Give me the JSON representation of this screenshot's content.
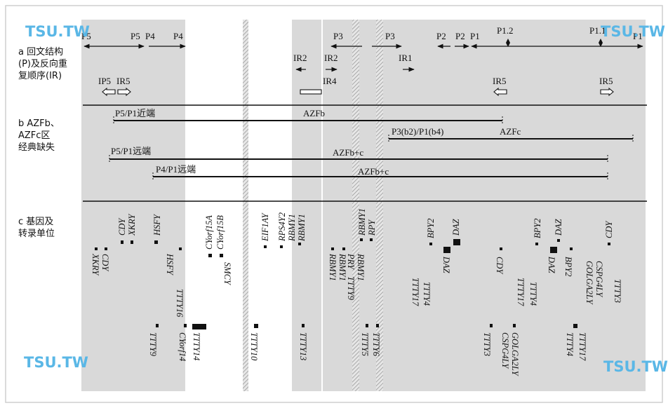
{
  "sections": {
    "a": [
      "a 回文结构",
      "(P)及反向重",
      "复顺序(IR)"
    ],
    "b": [
      "b AZFb、",
      "AZFc区",
      "经典缺失"
    ],
    "c": [
      "c 基因及",
      "转录单位"
    ]
  },
  "palindromes": [
    "P5",
    "P5",
    "P4",
    "P4",
    "P3",
    "P3",
    "P2",
    "P2",
    "P1",
    "P1.2",
    "P1.1",
    "P1"
  ],
  "inverted_repeats": [
    "IR2",
    "IR2",
    "IR1",
    "IP5",
    "IR5",
    "IR4",
    "IR5",
    "IR5"
  ],
  "deletions": [
    {
      "label": "P5/P1近端",
      "region": "AZFb"
    },
    {
      "label": "P3(b2)/P1(b4)",
      "region": "AZFc"
    },
    {
      "label": "P5/P1远端",
      "region": "AZFb+c"
    },
    {
      "label": "P4/P1远端",
      "region": "AZFb+c"
    }
  ],
  "genes_upper": [
    "CDY",
    "XKRY",
    "HSFY",
    "CYorf15A",
    "CYorf15B",
    "EIF1AY",
    "RPS4Y2",
    "RBMY1",
    "RBMY1",
    "RBMY1",
    "RPY",
    "BPY2",
    "DAZ",
    "BPY2",
    "DAZ",
    "CDY"
  ],
  "genes_lower": [
    "XKRY",
    "CDY",
    "HSFY",
    "TTTY16",
    "SMCY",
    "RBMY1",
    "RBMY1",
    "PRY",
    "TTTY9",
    "RBMY1",
    "TTTY17",
    "TTTY4",
    "DAZ",
    "CDY",
    "TTTY17",
    "TTTY4",
    "DAZ",
    "BPY2",
    "GOLGA2LY",
    "CSPG4LY",
    "TTTY3"
  ],
  "genes_bottom": [
    "TTTY9",
    "CYorf14",
    "TTTY14",
    "TTTY10",
    "TTTY13",
    "TTTY5",
    "TTTY6",
    "TTTY3",
    "GOLGA2LY",
    "CSPG4LY",
    "TTTY17",
    "TTTY4"
  ],
  "watermark": "TSU.TW",
  "colors": {
    "shade": "#d9d9d9",
    "line": "#111111",
    "watermark": "#5ab7e6"
  }
}
